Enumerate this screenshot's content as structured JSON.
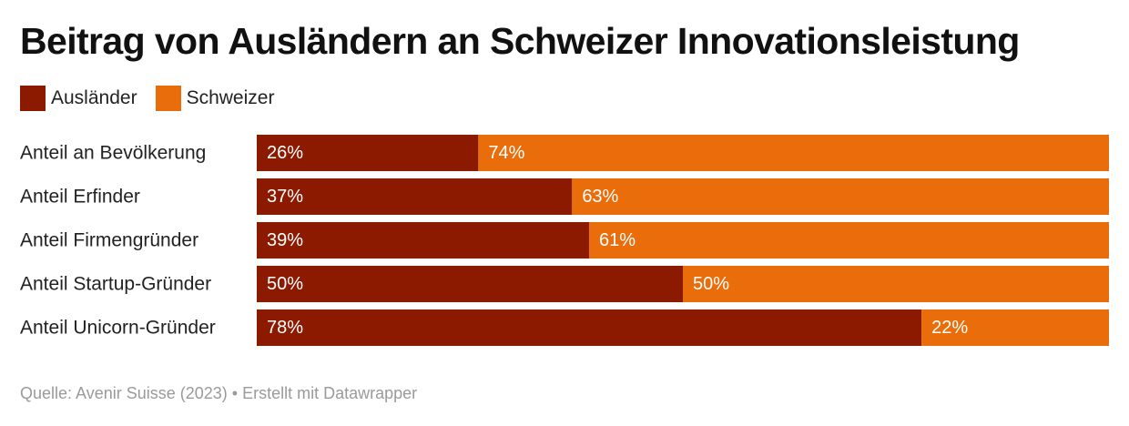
{
  "chart_data": {
    "type": "bar",
    "orientation": "horizontal",
    "stacked": true,
    "title": "Beitrag von Ausländern an Schweizer Innovationsleistung",
    "categories": [
      "Anteil an Bevölkerung",
      "Anteil Erfinder",
      "Anteil Firmengründer",
      "Anteil Startup-Gründer",
      "Anteil Unicorn-Gründer"
    ],
    "series": [
      {
        "name": "Ausländer",
        "color": "#8b1a00",
        "values": [
          26,
          37,
          39,
          50,
          78
        ],
        "labels": [
          "26%",
          "37%",
          "39%",
          "50%",
          "78%"
        ]
      },
      {
        "name": "Schweizer",
        "color": "#e96d0a",
        "values": [
          74,
          63,
          61,
          50,
          22
        ],
        "labels": [
          "74%",
          "63%",
          "61%",
          "50%",
          "22%"
        ]
      }
    ],
    "xlim": [
      0,
      100
    ],
    "unit": "%",
    "legend_position": "top-left",
    "grid": false
  },
  "footer": {
    "source": "Quelle: Avenir Suisse (2023) • Erstellt mit Datawrapper"
  }
}
